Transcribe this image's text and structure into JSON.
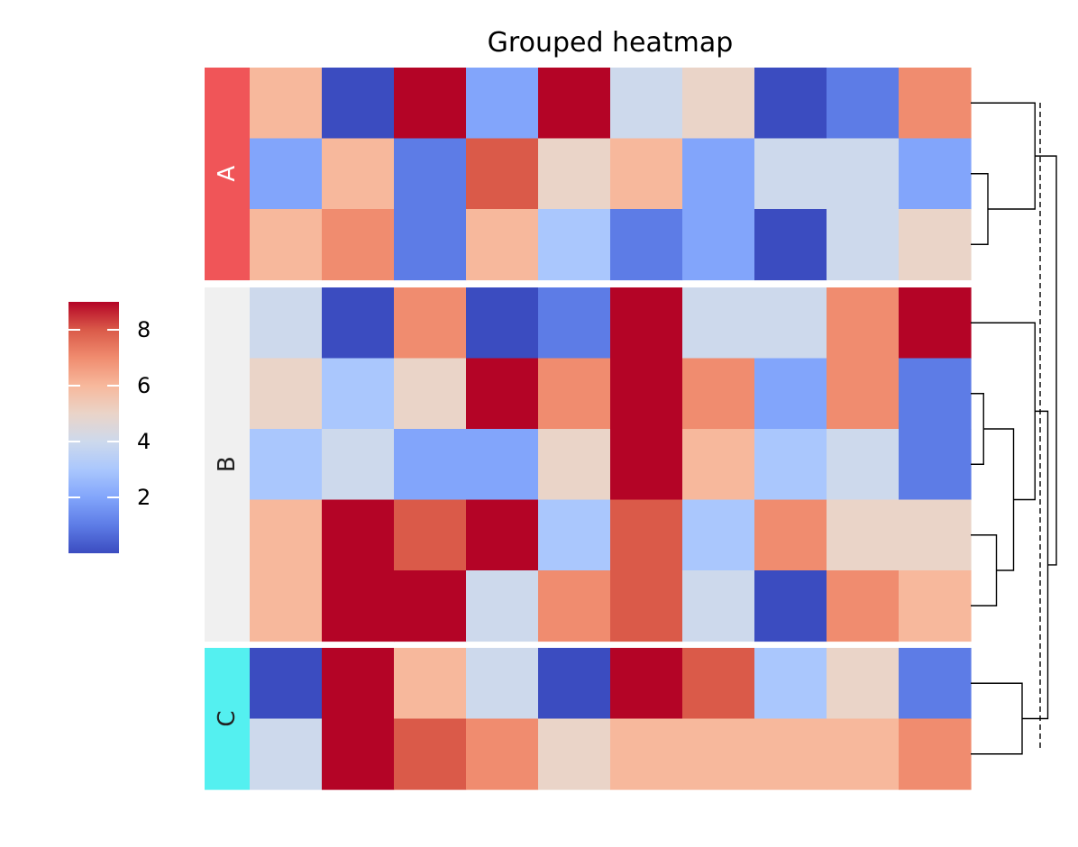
{
  "chart_data": {
    "type": "heatmap",
    "title": "Grouped heatmap",
    "colormap": "coolwarm",
    "colormap_stops": [
      "#3b4cc0",
      "#5d7ce6",
      "#82a5fb",
      "#aac7fd",
      "#cdd9ec",
      "#ead4c8",
      "#f7b89c",
      "#f08c6f",
      "#da5a49",
      "#b40426"
    ],
    "value_range": [
      0,
      9
    ],
    "colorbar_ticks": [
      2,
      4,
      6,
      8
    ],
    "groups": [
      {
        "label": "A",
        "color": "#f05558",
        "text_color": "#ffffff",
        "rows": [
          0,
          1,
          2
        ]
      },
      {
        "label": "B",
        "color": "#f0f0f0",
        "text_color": "#222222",
        "rows": [
          3,
          4,
          5,
          6,
          7
        ]
      },
      {
        "label": "C",
        "color": "#54f0f0",
        "text_color": "#222222",
        "rows": [
          8,
          9
        ]
      }
    ],
    "values": [
      [
        6,
        0,
        9,
        2,
        9,
        4,
        5,
        0,
        1,
        7
      ],
      [
        2,
        6,
        1,
        8,
        5,
        6,
        2,
        4,
        4,
        2
      ],
      [
        6,
        7,
        1,
        6,
        3,
        1,
        2,
        0,
        4,
        5
      ],
      [
        4,
        0,
        7,
        0,
        1,
        9,
        4,
        4,
        7,
        9
      ],
      [
        5,
        3,
        5,
        9,
        7,
        9,
        7,
        2,
        7,
        1
      ],
      [
        3,
        4,
        2,
        2,
        5,
        9,
        6,
        3,
        4,
        1
      ],
      [
        6,
        9,
        8,
        9,
        3,
        8,
        3,
        7,
        5,
        5
      ],
      [
        6,
        9,
        9,
        4,
        7,
        8,
        4,
        0,
        7,
        6
      ],
      [
        0,
        9,
        6,
        4,
        0,
        9,
        8,
        3,
        5,
        1
      ],
      [
        4,
        9,
        8,
        7,
        5,
        6,
        6,
        6,
        6,
        7
      ]
    ],
    "dendrogram": {
      "A": [
        [
          1,
          2,
          0.2
        ],
        [
          0,
          "1-2",
          0.75
        ]
      ],
      "B": [
        [
          4,
          5,
          0.15
        ],
        [
          6,
          7,
          0.3
        ],
        [
          "4-5",
          "6-7",
          0.5
        ],
        [
          3,
          "4-5-6-7",
          0.75
        ]
      ],
      "C": [
        [
          8,
          9,
          0.6
        ]
      ],
      "root": [
        [
          "B",
          "C",
          0.9
        ],
        [
          "A",
          "B-C",
          1.0
        ]
      ]
    }
  }
}
